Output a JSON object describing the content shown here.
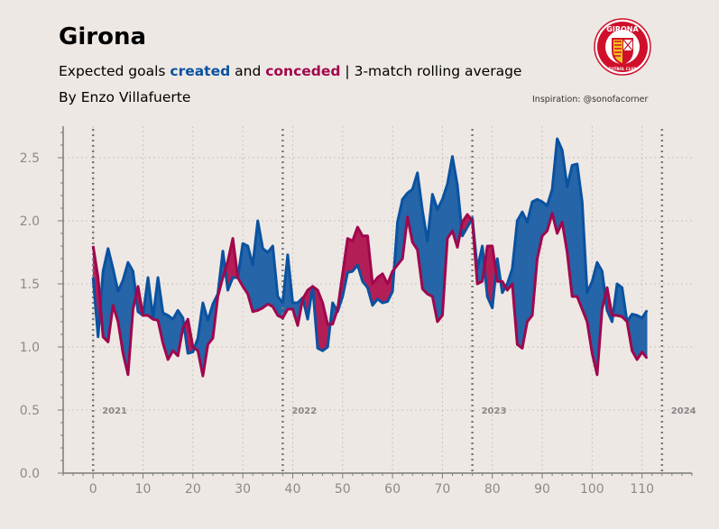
{
  "header": {
    "title": "Girona",
    "subtitle_prefix": "Expected goals ",
    "subtitle_created": "created",
    "subtitle_and": " and ",
    "subtitle_conceded": "conceded",
    "subtitle_suffix": " | 3-match rolling average",
    "byline": "By Enzo Villafuerte",
    "inspiration": "Inspiration: @sonofacorner",
    "logo_top": "GIRONA",
    "logo_bottom": "FUTBOL CLUB"
  },
  "colors": {
    "created": "#0A52A0",
    "conceded": "#A0074C",
    "created_fill": "#2565A8",
    "conceded_fill": "#B41E57",
    "background": "#EEE8E4"
  },
  "chart_data": {
    "type": "line",
    "title": "Girona",
    "xlim": [
      -6,
      120
    ],
    "ylim": [
      0,
      2.75
    ],
    "xticks": [
      0,
      10,
      20,
      30,
      40,
      50,
      60,
      70,
      80,
      90,
      100,
      110
    ],
    "yticks": [
      0.0,
      0.5,
      1.0,
      1.5,
      2.0,
      2.5
    ],
    "grid": true,
    "season_markers": [
      {
        "x": 0,
        "label": "2021"
      },
      {
        "x": 38,
        "label": "2022"
      },
      {
        "x": 76,
        "label": "2023"
      },
      {
        "x": 114,
        "label": "2024"
      }
    ],
    "x": [
      0,
      1,
      2,
      3,
      4,
      5,
      6,
      7,
      8,
      9,
      10,
      11,
      12,
      13,
      14,
      15,
      16,
      17,
      18,
      19,
      20,
      21,
      22,
      23,
      24,
      25,
      26,
      27,
      28,
      29,
      30,
      31,
      32,
      33,
      34,
      35,
      36,
      37,
      38,
      39,
      40,
      41,
      42,
      43,
      44,
      45,
      46,
      47,
      48,
      49,
      50,
      51,
      52,
      53,
      54,
      55,
      56,
      57,
      58,
      59,
      60,
      61,
      62,
      63,
      64,
      65,
      66,
      67,
      68,
      69,
      70,
      71,
      72,
      73,
      74,
      75,
      76,
      77,
      78,
      79,
      80,
      81,
      82,
      83,
      84,
      85,
      86,
      87,
      88,
      89,
      90,
      91,
      92,
      93,
      94,
      95,
      96,
      97,
      98,
      99,
      100,
      101,
      102,
      103,
      104,
      105,
      106,
      107,
      108,
      109,
      110,
      111
    ],
    "series": [
      {
        "name": "created",
        "values": [
          1.55,
          1.08,
          1.6,
          1.78,
          1.62,
          1.44,
          1.53,
          1.67,
          1.6,
          1.28,
          1.25,
          1.55,
          1.23,
          1.55,
          1.27,
          1.25,
          1.22,
          1.29,
          1.23,
          0.95,
          0.96,
          1.07,
          1.35,
          1.21,
          1.34,
          1.42,
          1.76,
          1.45,
          1.55,
          1.55,
          1.82,
          1.8,
          1.65,
          2.0,
          1.78,
          1.75,
          1.8,
          1.4,
          1.35,
          1.73,
          1.35,
          1.35,
          1.39,
          1.22,
          1.48,
          0.99,
          0.97,
          1.0,
          1.35,
          1.28,
          1.4,
          1.59,
          1.6,
          1.65,
          1.52,
          1.47,
          1.33,
          1.38,
          1.35,
          1.36,
          1.44,
          1.99,
          2.17,
          2.22,
          2.25,
          2.38,
          2.08,
          1.84,
          2.21,
          2.09,
          2.17,
          2.29,
          2.51,
          2.28,
          1.88,
          1.95,
          2.02,
          1.62,
          1.8,
          1.4,
          1.31,
          1.7,
          1.43,
          1.5,
          1.62,
          2.0,
          2.07,
          1.99,
          2.15,
          2.17,
          2.15,
          2.12,
          2.25,
          2.65,
          2.56,
          2.27,
          2.44,
          2.45,
          2.15,
          1.43,
          1.52,
          1.67,
          1.6,
          1.29,
          1.2,
          1.5,
          1.47,
          1.2,
          1.26,
          1.25,
          1.23,
          1.29
        ]
      },
      {
        "name": "conceded",
        "values": [
          1.8,
          1.55,
          1.08,
          1.04,
          1.33,
          1.2,
          0.95,
          0.78,
          1.3,
          1.48,
          1.25,
          1.25,
          1.22,
          1.21,
          1.03,
          0.9,
          0.97,
          0.93,
          1.15,
          1.22,
          1.0,
          0.97,
          0.77,
          1.02,
          1.07,
          1.4,
          1.55,
          1.68,
          1.86,
          1.55,
          1.48,
          1.42,
          1.28,
          1.29,
          1.31,
          1.34,
          1.32,
          1.25,
          1.23,
          1.3,
          1.3,
          1.17,
          1.38,
          1.45,
          1.48,
          1.45,
          1.35,
          1.18,
          1.18,
          1.3,
          1.58,
          1.86,
          1.84,
          1.95,
          1.88,
          1.88,
          1.5,
          1.55,
          1.58,
          1.5,
          1.6,
          1.65,
          1.7,
          2.03,
          1.83,
          1.77,
          1.46,
          1.42,
          1.4,
          1.2,
          1.25,
          1.86,
          1.92,
          1.79,
          1.99,
          2.05,
          2.0,
          1.5,
          1.52,
          1.8,
          1.8,
          1.52,
          1.52,
          1.45,
          1.5,
          1.02,
          0.99,
          1.2,
          1.25,
          1.7,
          1.88,
          1.92,
          2.06,
          1.9,
          1.99,
          1.75,
          1.4,
          1.4,
          1.3,
          1.2,
          0.95,
          0.78,
          1.3,
          1.47,
          1.25,
          1.25,
          1.24,
          1.2,
          0.97,
          0.9,
          0.96,
          0.91
        ]
      }
    ]
  }
}
